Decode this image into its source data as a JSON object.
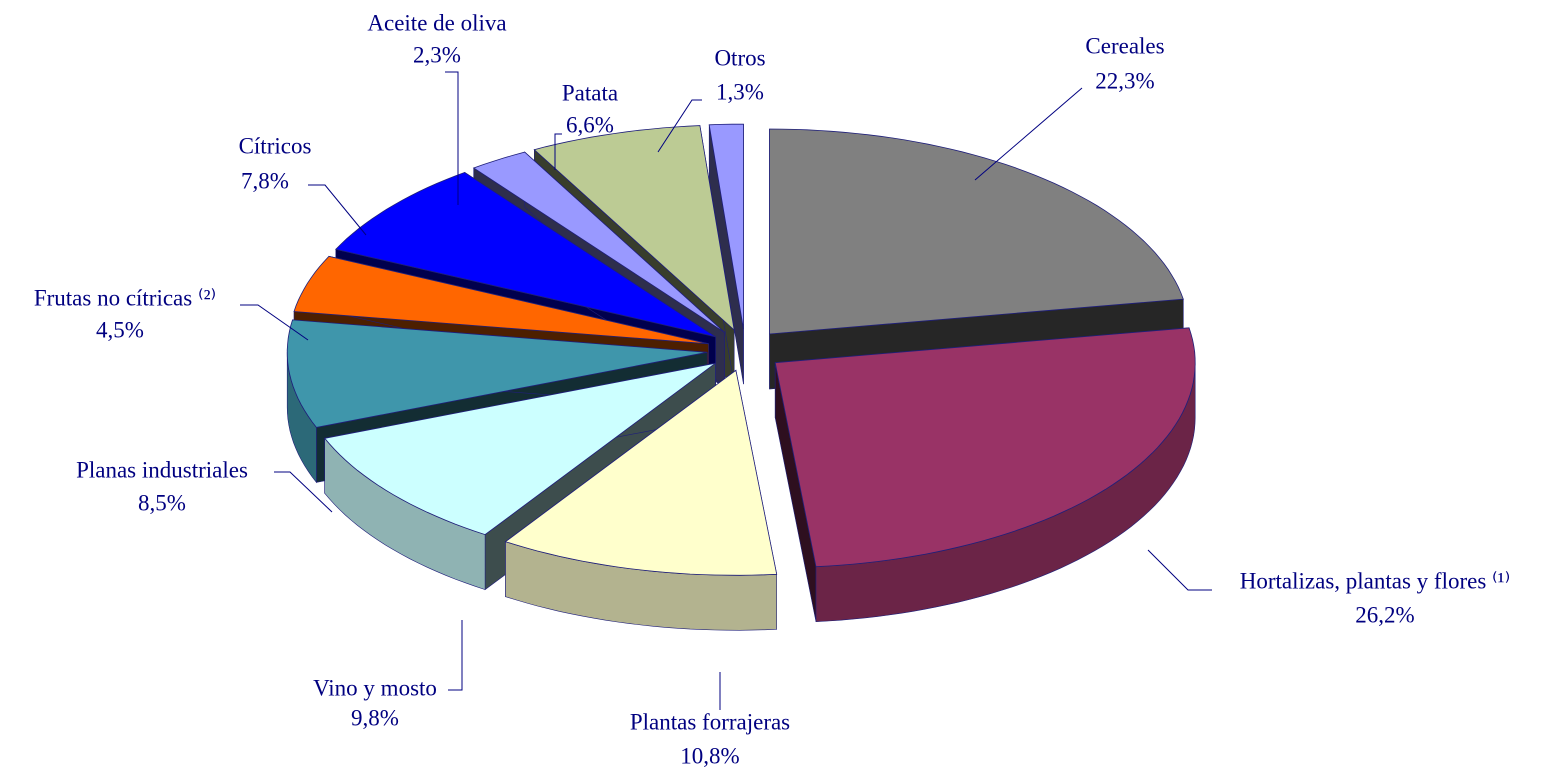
{
  "chart_data": {
    "type": "pie3d",
    "categories": [
      "Cereales",
      "Hortalizas, plantas y flores ⁽¹⁾",
      "Plantas forrajeras",
      "Vino y mosto",
      "Planas industriales",
      "Frutas no cítricas ⁽²⁾",
      "Cítricos",
      "Aceite de oliva",
      "Patata",
      "Otros"
    ],
    "values": [
      22.3,
      26.2,
      10.8,
      9.8,
      8.5,
      4.5,
      7.8,
      2.3,
      6.6,
      1.3
    ],
    "value_labels": [
      "22,3%",
      "26,2%",
      "10,8%",
      "9,8%",
      "8,5%",
      "4,5%",
      "7,8%",
      "2,3%",
      "6,6%",
      "1,3%"
    ],
    "colors": [
      "#808080",
      "#993366",
      "#ffffcc",
      "#ccffff",
      "#3f96ab",
      "#ff6600",
      "#0000ff",
      "#9999ff",
      "#bccb94",
      "#9999ff"
    ],
    "label_color": "#000080"
  }
}
